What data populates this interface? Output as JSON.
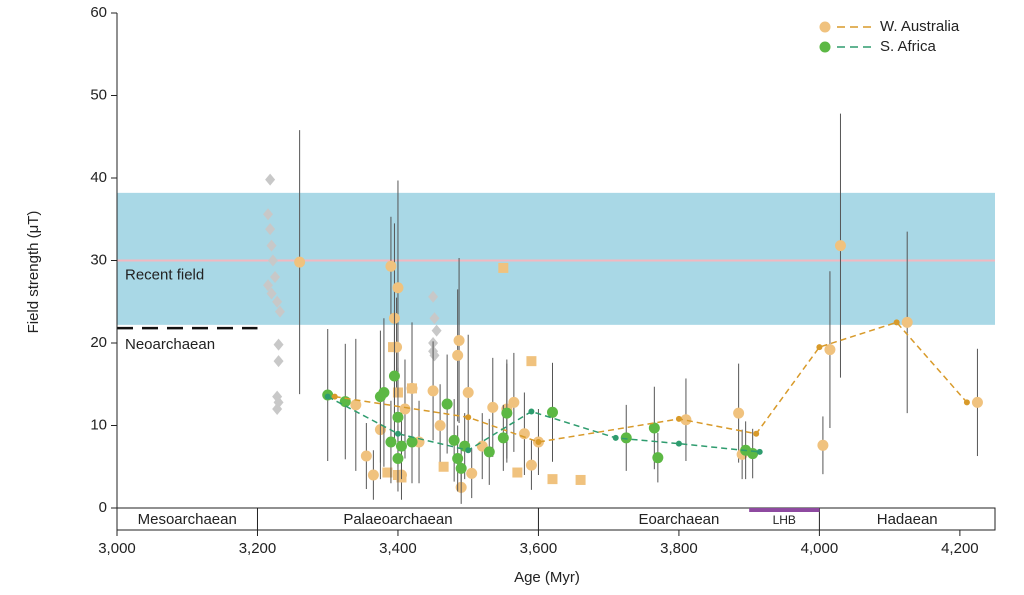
{
  "chart_data": {
    "type": "scatter",
    "xlabel": "Age (Myr)",
    "ylabel": "Field strength (μT)",
    "xlim": [
      3000,
      4250
    ],
    "ylim": [
      0,
      60
    ],
    "xticks": [
      {
        "value": 3000,
        "label": "3,000"
      },
      {
        "value": 3200,
        "label": "3,200"
      },
      {
        "value": 3400,
        "label": "3,400"
      },
      {
        "value": 3600,
        "label": "3,600"
      },
      {
        "value": 3800,
        "label": "3,800"
      },
      {
        "value": 4000,
        "label": "4,000"
      },
      {
        "value": 4200,
        "label": "4,200"
      }
    ],
    "yticks": [
      0,
      10,
      20,
      30,
      40,
      50,
      60
    ],
    "recent_field": {
      "label": "Recent field",
      "range": [
        22.2,
        38.2
      ],
      "value": 30,
      "color": "#a9d8e6",
      "line_color": "#f2b8c0"
    },
    "neoarchaean": {
      "label": "Neoarchaean",
      "value": 21.8,
      "range": [
        3000,
        3200
      ]
    },
    "epochs": [
      {
        "label": "Mesoarchaean",
        "range": [
          3000,
          3200
        ]
      },
      {
        "label": "Palaeoarchaean",
        "range": [
          3200,
          3600
        ]
      },
      {
        "label": "Eoarchaean",
        "range": [
          3600,
          4000
        ]
      },
      {
        "label": "Hadaean",
        "range": [
          4000,
          4250
        ]
      }
    ],
    "lhb": {
      "label": "LHB",
      "range": [
        3900,
        4000
      ],
      "color": "#8e4aa0"
    },
    "series": [
      {
        "marker": "diamond",
        "color": "#c8c8c8",
        "x": [
          3218,
          3215,
          3218,
          3220,
          3222,
          3225,
          3215,
          3220,
          3228,
          3232,
          3230,
          3230,
          3228,
          3230,
          3228,
          3450,
          3452,
          3455,
          3450,
          3452,
          3450
        ],
        "values": [
          39.8,
          35.6,
          33.8,
          31.8,
          30,
          28,
          27,
          26,
          25,
          23.8,
          19.8,
          17.8,
          13.5,
          12.8,
          12,
          25.6,
          23,
          21.5,
          20,
          18.5,
          19
        ]
      },
      {
        "marker": "circle",
        "color": "#f0c27e",
        "x": [
          3260,
          3340,
          3355,
          3365,
          3375,
          3390,
          3395,
          3400,
          3398,
          3405,
          3410,
          3420,
          3430,
          3450,
          3460,
          3485,
          3487,
          3490,
          3500,
          3505,
          3520,
          3535,
          3555,
          3565,
          3580,
          3590,
          3600,
          3810,
          3885,
          3890,
          4005,
          4015,
          4030,
          4125,
          4225
        ],
        "values": [
          29.8,
          12.5,
          6.3,
          4,
          9.5,
          29.3,
          23,
          26.7,
          19.5,
          4,
          12,
          14.5,
          8,
          14.2,
          10,
          18.5,
          20.3,
          2.5,
          14,
          4.2,
          7.5,
          12.2,
          12,
          12.8,
          9,
          5.2,
          8,
          10.7,
          11.5,
          6.5,
          7.6,
          19.2,
          31.8,
          22.5,
          12.8
        ],
        "errors": [
          16,
          8,
          4,
          3,
          6,
          6,
          11.5,
          13,
          6,
          3,
          6,
          8,
          5,
          6,
          5,
          8,
          10,
          2,
          7,
          3,
          4,
          6,
          6,
          6,
          5,
          3,
          4,
          5,
          6,
          3,
          3.5,
          9.5,
          16,
          11,
          6.5
        ]
      },
      {
        "marker": "square",
        "color": "#f0c27e",
        "x": [
          3385,
          3400,
          3405,
          3420,
          3465,
          3550,
          3570,
          3590,
          3620,
          3660,
          3400,
          3393
        ],
        "values": [
          4.3,
          4,
          3.7,
          14.5,
          5,
          29.1,
          4.3,
          17.8,
          3.5,
          3.4,
          14,
          19.5
        ]
      },
      {
        "marker": "circle",
        "color": "#5cb844",
        "x": [
          3300,
          3325,
          3375,
          3380,
          3390,
          3395,
          3400,
          3400,
          3405,
          3420,
          3470,
          3480,
          3485,
          3490,
          3495,
          3530,
          3550,
          3555,
          3620,
          3725,
          3765,
          3770,
          3895,
          3905
        ],
        "values": [
          13.7,
          12.9,
          13.5,
          14,
          8,
          16,
          11,
          6,
          7.5,
          8,
          12.6,
          8.2,
          6,
          4.8,
          7.5,
          6.8,
          8.5,
          11.5,
          11.6,
          8.5,
          9.7,
          6.1,
          7,
          6.6
        ],
        "errors": [
          8,
          7,
          8,
          9,
          5,
          8,
          6,
          4,
          4,
          5,
          6,
          5,
          4,
          3,
          4,
          4,
          4,
          6,
          6,
          4,
          5,
          3,
          3.5,
          3
        ]
      },
      {
        "name": "W. Australia",
        "marker": "line",
        "color": "#d89a2a",
        "legend_color": "#f0c27e",
        "x": [
          3310,
          3500,
          3600,
          3800,
          3910,
          4000,
          4110,
          4210
        ],
        "values": [
          13.5,
          11,
          8,
          10.8,
          9,
          19.5,
          22.5,
          12.8
        ]
      },
      {
        "name": "S. Africa",
        "marker": "line",
        "color": "#2e9c6e",
        "legend_color": "#5cb844",
        "x": [
          3300,
          3400,
          3500,
          3590,
          3710,
          3800,
          3915
        ],
        "values": [
          13.5,
          9,
          7,
          11.7,
          8.5,
          7.8,
          6.8
        ]
      }
    ]
  }
}
